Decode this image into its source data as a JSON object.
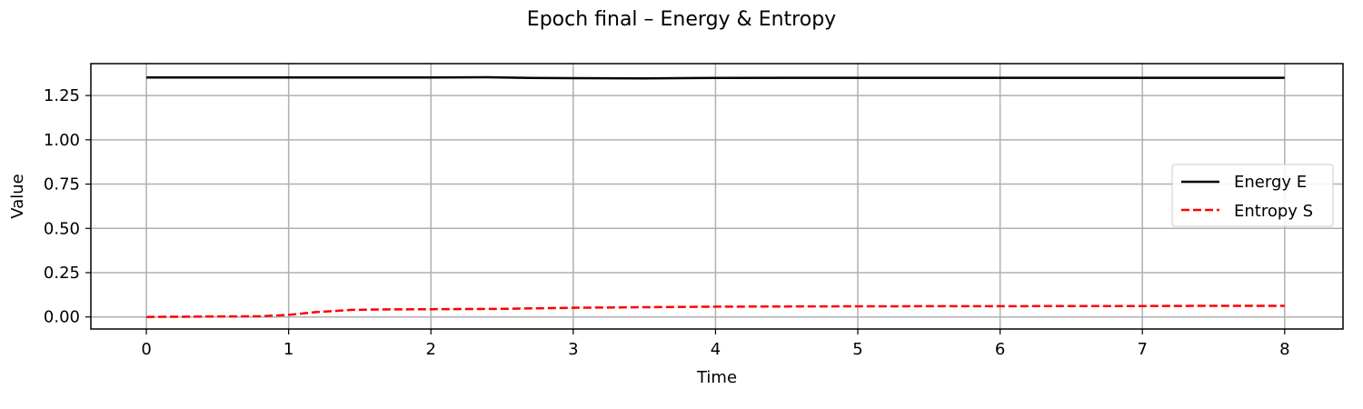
{
  "chart_data": {
    "type": "line",
    "title": "Epoch final – Energy & Entropy",
    "xlabel": "Time",
    "ylabel": "Value",
    "xlim": [
      -0.39,
      8.41
    ],
    "ylim": [
      -0.068,
      1.43
    ],
    "xticks": [
      0,
      1,
      2,
      3,
      4,
      5,
      6,
      7,
      8
    ],
    "xtick_labels": [
      "0",
      "1",
      "2",
      "3",
      "4",
      "5",
      "6",
      "7",
      "8"
    ],
    "yticks": [
      0.0,
      0.25,
      0.5,
      0.75,
      1.0,
      1.25
    ],
    "ytick_labels": [
      "0.00",
      "0.25",
      "0.50",
      "0.75",
      "1.00",
      "1.25"
    ],
    "grid": true,
    "legend_position": "center-right",
    "series": [
      {
        "name": "Energy E",
        "color": "#000000",
        "style": "solid",
        "x": [
          0,
          0.5,
          1,
          1.5,
          2,
          2.4,
          2.7,
          3,
          3.5,
          4,
          4.5,
          5,
          5.5,
          6,
          6.5,
          7,
          7.5,
          8
        ],
        "y": [
          1.352,
          1.352,
          1.352,
          1.352,
          1.352,
          1.353,
          1.349,
          1.348,
          1.347,
          1.349,
          1.35,
          1.35,
          1.35,
          1.35,
          1.35,
          1.35,
          1.35,
          1.35
        ]
      },
      {
        "name": "Entropy S",
        "color": "#ff0000",
        "style": "dashed",
        "x": [
          0,
          0.5,
          0.8,
          1,
          1.2,
          1.45,
          1.7,
          2,
          2.5,
          3,
          3.5,
          4,
          4.5,
          5,
          5.5,
          6,
          6.5,
          7,
          7.5,
          8
        ],
        "y": [
          0.0,
          0.003,
          0.004,
          0.012,
          0.028,
          0.04,
          0.043,
          0.044,
          0.046,
          0.052,
          0.055,
          0.058,
          0.059,
          0.06,
          0.061,
          0.061,
          0.062,
          0.062,
          0.063,
          0.063
        ]
      }
    ]
  }
}
